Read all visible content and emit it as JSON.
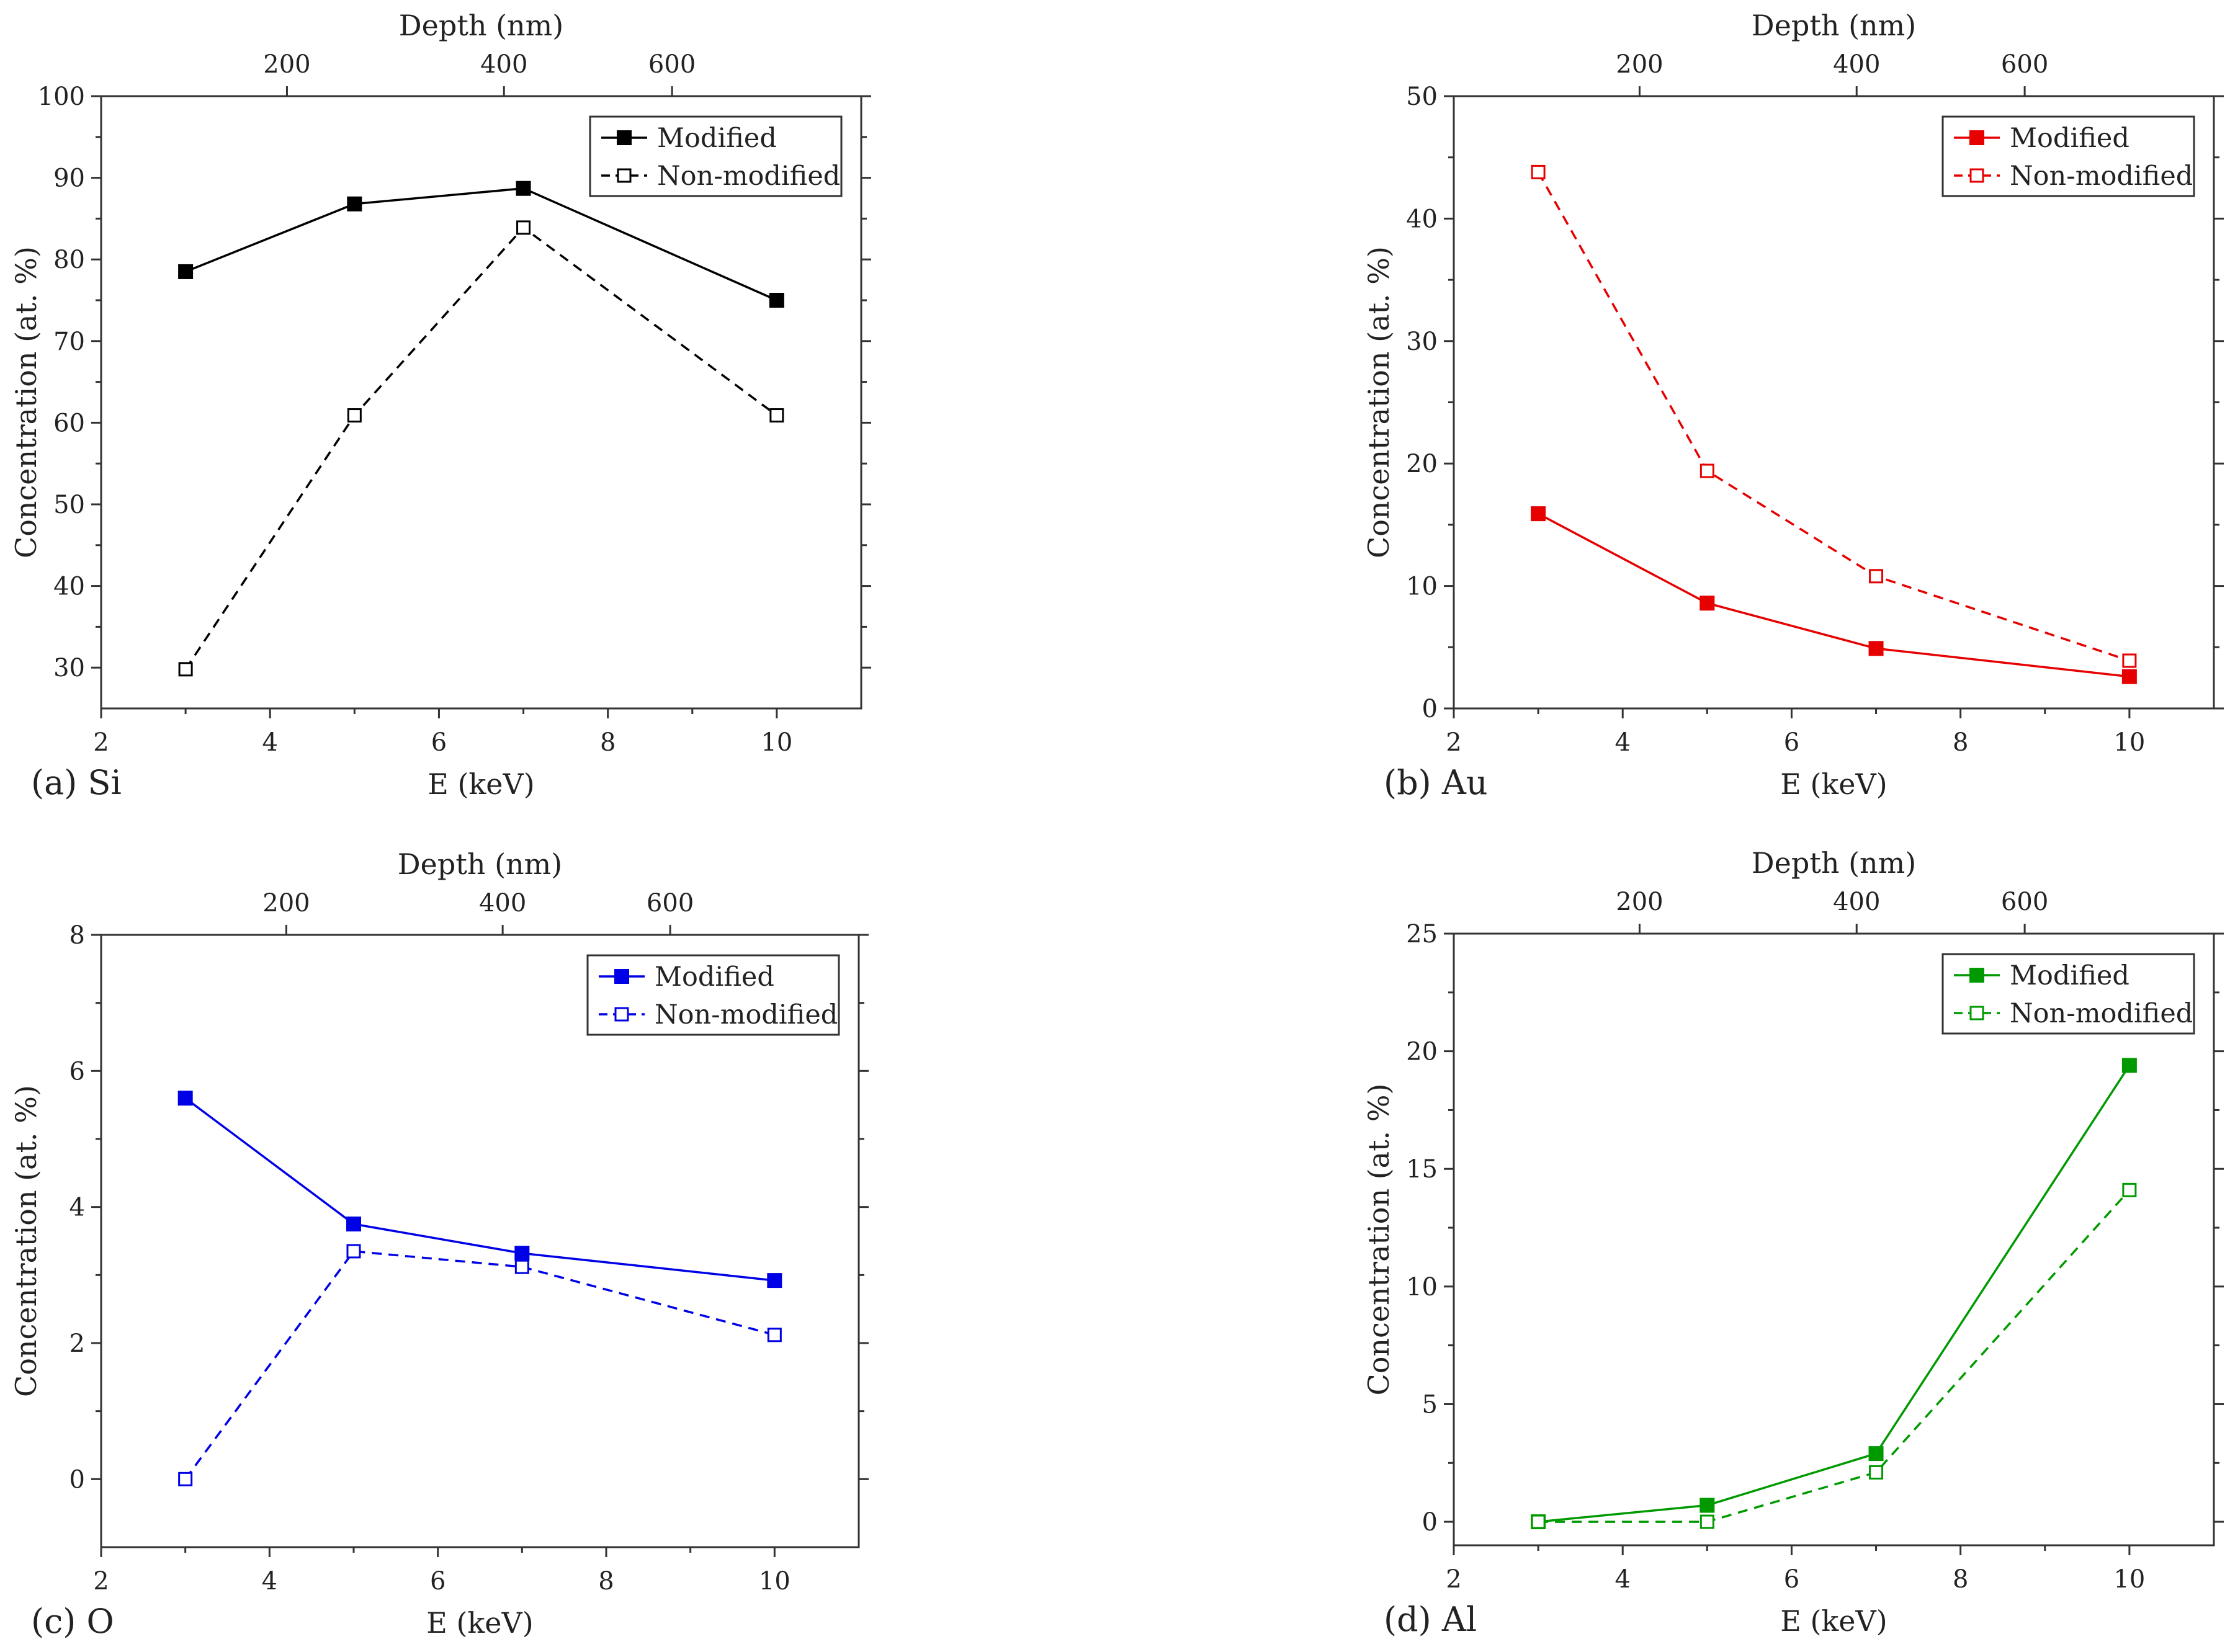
{
  "chart_data": [
    {
      "type": "line",
      "panel_label": "(a) Si",
      "color": "#000000",
      "title": "",
      "xlabel": "E (keV)",
      "ylabel": "Concentration (at. %)",
      "top_xlabel": "Depth (nm)",
      "xlim": [
        2,
        11
      ],
      "ylim": [
        25,
        100
      ],
      "xticks": [
        2,
        4,
        6,
        8,
        10
      ],
      "yticks": [
        30,
        40,
        50,
        60,
        70,
        80,
        90,
        100
      ],
      "top_ticks": [
        {
          "label": "200",
          "at_x": 4.2
        },
        {
          "label": "400",
          "at_x": 6.77
        },
        {
          "label": "600",
          "at_x": 8.76
        }
      ],
      "legend_position": "top-right",
      "x": [
        3,
        5,
        7,
        10
      ],
      "series": [
        {
          "name": "Modified",
          "values": [
            78.5,
            86.8,
            88.7,
            75.0
          ],
          "marker": "filled-square",
          "line": "solid"
        },
        {
          "name": "Non-modified",
          "values": [
            29.8,
            60.9,
            83.9,
            60.9
          ],
          "marker": "open-square",
          "line": "dashed"
        }
      ]
    },
    {
      "type": "line",
      "panel_label": "(b) Au",
      "color": "#e60000",
      "title": "",
      "xlabel": "E (keV)",
      "ylabel": "Concentration (at. %)",
      "top_xlabel": "Depth (nm)",
      "xlim": [
        2,
        11
      ],
      "ylim": [
        0,
        50
      ],
      "xticks": [
        2,
        4,
        6,
        8,
        10
      ],
      "yticks": [
        0,
        10,
        20,
        30,
        40,
        50
      ],
      "top_ticks": [
        {
          "label": "200",
          "at_x": 4.2
        },
        {
          "label": "400",
          "at_x": 6.77
        },
        {
          "label": "600",
          "at_x": 8.76
        }
      ],
      "legend_position": "top-right",
      "x": [
        3,
        5,
        7,
        10
      ],
      "series": [
        {
          "name": "Modified",
          "values": [
            15.9,
            8.6,
            4.9,
            2.6
          ],
          "marker": "filled-square",
          "line": "solid"
        },
        {
          "name": "Non-modified",
          "values": [
            43.8,
            19.4,
            10.8,
            3.9
          ],
          "marker": "open-square",
          "line": "dashed"
        }
      ]
    },
    {
      "type": "line",
      "panel_label": "(c) O",
      "color": "#0000e6",
      "title": "",
      "xlabel": "E (keV)",
      "ylabel": "Concentration (at. %)",
      "top_xlabel": "Depth (nm)",
      "xlim": [
        2,
        11
      ],
      "ylim": [
        -1,
        8
      ],
      "xticks": [
        2,
        4,
        6,
        8,
        10
      ],
      "yticks": [
        0,
        2,
        4,
        6,
        8
      ],
      "top_ticks": [
        {
          "label": "200",
          "at_x": 4.2
        },
        {
          "label": "400",
          "at_x": 6.77
        },
        {
          "label": "600",
          "at_x": 8.76
        }
      ],
      "legend_position": "top-right",
      "x": [
        3,
        5,
        7,
        10
      ],
      "series": [
        {
          "name": "Modified",
          "values": [
            5.6,
            3.75,
            3.32,
            2.92
          ],
          "marker": "filled-square",
          "line": "solid"
        },
        {
          "name": "Non-modified",
          "values": [
            0.0,
            3.35,
            3.12,
            2.12
          ],
          "marker": "open-square",
          "line": "dashed"
        }
      ]
    },
    {
      "type": "line",
      "panel_label": "(d) Al",
      "color": "#009a00",
      "title": "",
      "xlabel": "E (keV)",
      "ylabel": "Concentration (at. %)",
      "top_xlabel": "Depth (nm)",
      "xlim": [
        2,
        11
      ],
      "ylim": [
        -1,
        25
      ],
      "xticks": [
        2,
        4,
        6,
        8,
        10
      ],
      "yticks": [
        0,
        5,
        10,
        15,
        20,
        25
      ],
      "top_ticks": [
        {
          "label": "200",
          "at_x": 4.2
        },
        {
          "label": "400",
          "at_x": 6.77
        },
        {
          "label": "600",
          "at_x": 8.76
        }
      ],
      "legend_position": "top-right",
      "x": [
        3,
        5,
        7,
        10
      ],
      "series": [
        {
          "name": "Modified",
          "values": [
            0.0,
            0.7,
            2.9,
            19.4
          ],
          "marker": "filled-square",
          "line": "solid"
        },
        {
          "name": "Non-modified",
          "values": [
            0.0,
            0.0,
            2.1,
            14.1
          ],
          "marker": "open-square",
          "line": "dashed"
        }
      ]
    }
  ]
}
